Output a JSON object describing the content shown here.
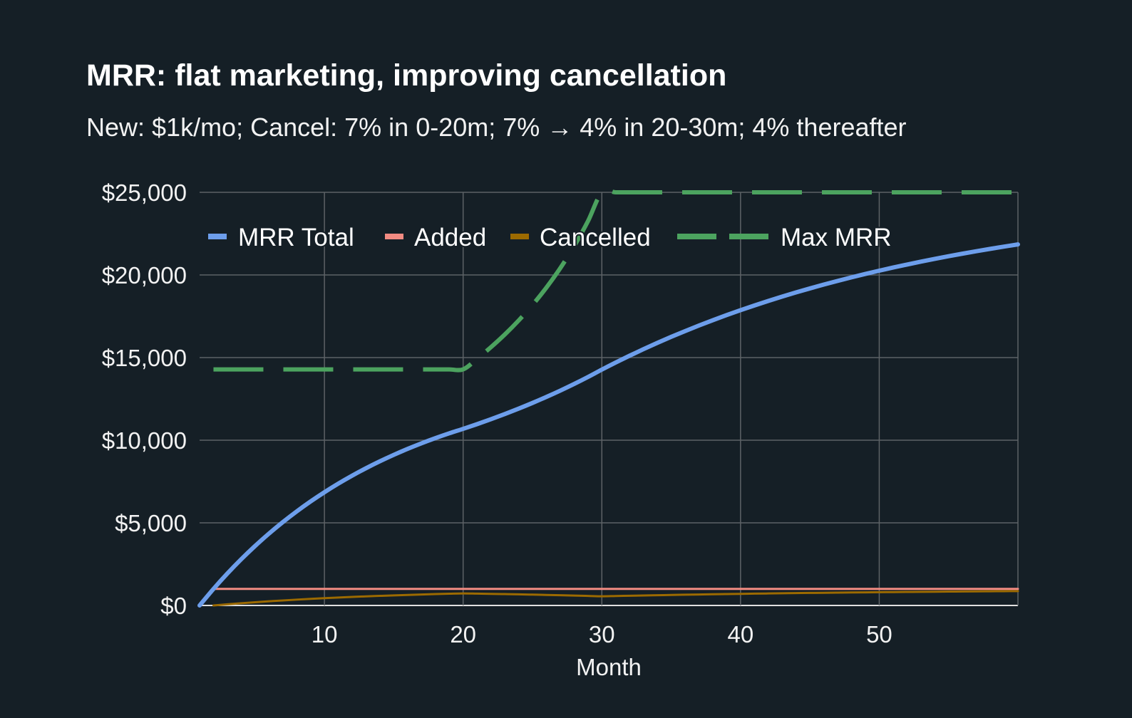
{
  "chart_data": {
    "type": "line",
    "title": "MRR: flat marketing, improving cancellation",
    "subtitle": "New: $1k/mo; Cancel: 7% in 0-20m; 7% → 4% in 20-30m; 4% thereafter",
    "xlabel": "Month",
    "ylabel": "",
    "xlim": [
      1,
      60
    ],
    "ylim": [
      0,
      25000
    ],
    "xticks": [
      10,
      20,
      30,
      40,
      50
    ],
    "xtick_labels": [
      "10",
      "20",
      "30",
      "40",
      "50"
    ],
    "yticks": [
      0,
      5000,
      10000,
      15000,
      20000,
      25000
    ],
    "ytick_labels": [
      "$0",
      "$5,000",
      "$10,000",
      "$15,000",
      "$20,000",
      "$25,000"
    ],
    "grid": true,
    "legend_position": "top",
    "x": [
      1,
      2,
      3,
      4,
      5,
      6,
      7,
      8,
      9,
      10,
      11,
      12,
      13,
      14,
      15,
      16,
      17,
      18,
      19,
      20,
      21,
      22,
      23,
      24,
      25,
      26,
      27,
      28,
      29,
      30,
      31,
      32,
      33,
      34,
      35,
      36,
      37,
      38,
      39,
      40,
      41,
      42,
      43,
      44,
      45,
      46,
      47,
      48,
      49,
      50,
      51,
      52,
      53,
      54,
      55,
      56,
      57,
      58,
      59,
      60
    ],
    "series": [
      {
        "name": "MRR Total",
        "color": "#6d9eeb",
        "style": "solid",
        "values": [
          0,
          1000,
          1930,
          2795,
          3599,
          4347,
          5043,
          5690,
          6292,
          6851,
          7372,
          7856,
          8306,
          8724,
          9114,
          9476,
          9812,
          10126,
          10417,
          10688,
          10971,
          11269,
          11582,
          11910,
          12255,
          12618,
          12999,
          13401,
          13825,
          14272,
          14701,
          15113,
          15509,
          15889,
          16253,
          16602,
          16939,
          17261,
          17571,
          17868,
          18153,
          18427,
          18690,
          18942,
          19184,
          19417,
          19640,
          19855,
          20061,
          20258,
          20448,
          20630,
          20804,
          20973,
          21134,
          21288,
          21437,
          21579,
          21716,
          21847
        ]
      },
      {
        "name": "Added",
        "color": "#f28b82",
        "style": "solid",
        "values": [
          null,
          1000,
          1000,
          1000,
          1000,
          1000,
          1000,
          1000,
          1000,
          1000,
          1000,
          1000,
          1000,
          1000,
          1000,
          1000,
          1000,
          1000,
          1000,
          1000,
          1000,
          1000,
          1000,
          1000,
          1000,
          1000,
          1000,
          1000,
          1000,
          1000,
          1000,
          1000,
          1000,
          1000,
          1000,
          1000,
          1000,
          1000,
          1000,
          1000,
          1000,
          1000,
          1000,
          1000,
          1000,
          1000,
          1000,
          1000,
          1000,
          1000,
          1000,
          1000,
          1000,
          1000,
          1000,
          1000,
          1000,
          1000,
          1000,
          1000
        ]
      },
      {
        "name": "Cancelled",
        "color": "#9c6a00",
        "style": "solid",
        "values": [
          null,
          0,
          70,
          135,
          196,
          252,
          304,
          353,
          398,
          440,
          480,
          516,
          550,
          581,
          611,
          638,
          663,
          687,
          709,
          729,
          716,
          702,
          687,
          672,
          655,
          637,
          618,
          598,
          576,
          553,
          571,
          588,
          605,
          620,
          636,
          650,
          664,
          678,
          690,
          703,
          715,
          726,
          737,
          748,
          758,
          767,
          777,
          786,
          794,
          802,
          810,
          818,
          825,
          832,
          839,
          845,
          852,
          857,
          863,
          869
        ]
      },
      {
        "name": "Max MRR",
        "color": "#4ca35f",
        "style": "dashed",
        "values": [
          null,
          14286,
          14286,
          14286,
          14286,
          14286,
          14286,
          14286,
          14286,
          14286,
          14286,
          14286,
          14286,
          14286,
          14286,
          14286,
          14286,
          14286,
          14286,
          14286,
          14925,
          15625,
          16393,
          17241,
          18182,
          19231,
          20408,
          21739,
          23256,
          25000,
          25000,
          25000,
          25000,
          25000,
          25000,
          25000,
          25000,
          25000,
          25000,
          25000,
          25000,
          25000,
          25000,
          25000,
          25000,
          25000,
          25000,
          25000,
          25000,
          25000,
          25000,
          25000,
          25000,
          25000,
          25000,
          25000,
          25000,
          25000,
          25000,
          25000
        ]
      }
    ]
  }
}
